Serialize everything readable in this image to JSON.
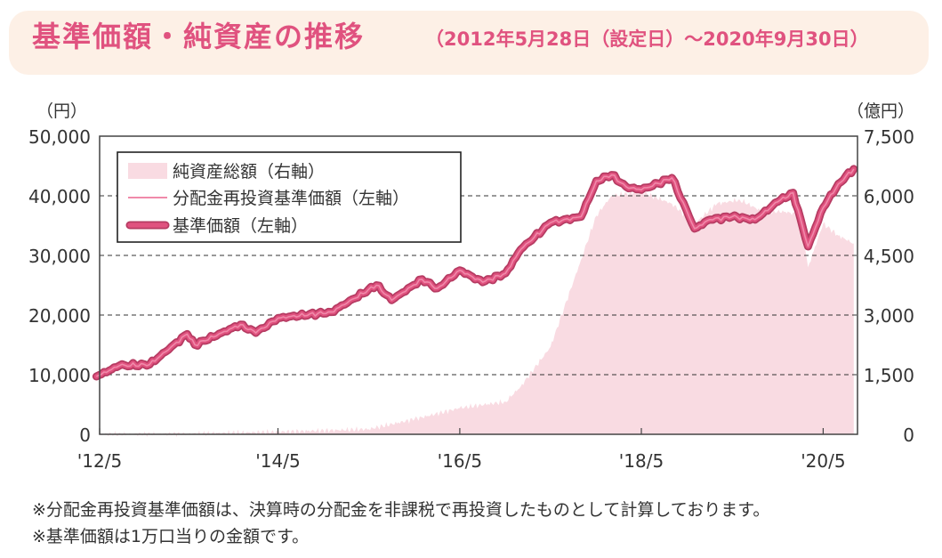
{
  "header": {
    "title": "基準価額・純資産の推移",
    "period": "（2012年5月28日（設定日）〜2020年9月30日）"
  },
  "notes": [
    "※分配金再投資基準価額は、決算時の分配金を非課税で再投資したものとして計算しております。",
    "※基準価額は1万口当りの金額です。"
  ],
  "colors": {
    "accent": "#e0527f",
    "nav_line": "#e0527f",
    "nav_outline": "#b63b62",
    "reinvest_line": "#f08aaa",
    "assets_fill": "#f9dbe2",
    "header_bg": "#fdf0e6"
  },
  "chart_data": {
    "type": "line",
    "left_unit": "（円）",
    "right_unit": "（億円）",
    "x_ticks": [
      "'12/5",
      "'14/5",
      "'16/5",
      "'18/5",
      "'20/5"
    ],
    "x_tick_dates": [
      "2012-05",
      "2014-05",
      "2016-05",
      "2018-05",
      "2020-05"
    ],
    "x_range": [
      "2012-05-28",
      "2020-09-30"
    ],
    "y_left_ticks": [
      "0",
      "10,000",
      "20,000",
      "30,000",
      "40,000",
      "50,000"
    ],
    "y_left_range": [
      0,
      50000
    ],
    "y_right_ticks": [
      "0",
      "1,500",
      "3,000",
      "4,500",
      "6,000",
      "7,500"
    ],
    "y_right_range": [
      0,
      7500
    ],
    "grid": "horizontal dashed",
    "legend_position": "top-left",
    "series": [
      {
        "name": "純資産総額（右軸）",
        "kind": "area",
        "axis": "right",
        "x": [
          "2012-05",
          "2013-05",
          "2014-05",
          "2015-05",
          "2015-11",
          "2016-05",
          "2016-11",
          "2017-01",
          "2017-05",
          "2017-09",
          "2017-11",
          "2018-01",
          "2018-05",
          "2018-09",
          "2018-12",
          "2019-03",
          "2019-06",
          "2019-09",
          "2019-12",
          "2020-02",
          "2020-03",
          "2020-05",
          "2020-07",
          "2020-09"
        ],
        "values": [
          0,
          15,
          60,
          130,
          380,
          660,
          820,
          1200,
          2200,
          4400,
          5500,
          6000,
          6100,
          5800,
          5300,
          5800,
          5900,
          5600,
          5600,
          5500,
          4200,
          5300,
          5000,
          4800
        ]
      },
      {
        "name": "分配金再投資基準価額（左軸）",
        "kind": "line",
        "axis": "left",
        "x": [
          "2012-05",
          "2012-08",
          "2012-12",
          "2013-05",
          "2013-06",
          "2013-12",
          "2014-02",
          "2014-05",
          "2014-12",
          "2015-06",
          "2015-08",
          "2015-12",
          "2016-02",
          "2016-05",
          "2016-08",
          "2016-11",
          "2017-01",
          "2017-05",
          "2017-09",
          "2017-11",
          "2018-01",
          "2018-03",
          "2018-05",
          "2018-09",
          "2018-12",
          "2019-02",
          "2019-05",
          "2019-08",
          "2019-11",
          "2020-01",
          "2020-03",
          "2020-05",
          "2020-07",
          "2020-09"
        ],
        "values": [
          9700,
          11500,
          11700,
          16800,
          15000,
          18400,
          17000,
          19500,
          20500,
          25000,
          22500,
          26000,
          24500,
          27500,
          25500,
          27000,
          31000,
          35500,
          36500,
          42500,
          43500,
          41500,
          41000,
          43000,
          34500,
          36000,
          36500,
          36000,
          39000,
          40500,
          31500,
          38000,
          42000,
          44500
        ]
      },
      {
        "name": "基準価額（左軸）",
        "kind": "line",
        "axis": "left",
        "x": [
          "2012-05",
          "2012-08",
          "2012-12",
          "2013-05",
          "2013-06",
          "2013-12",
          "2014-02",
          "2014-05",
          "2014-12",
          "2015-06",
          "2015-08",
          "2015-12",
          "2016-02",
          "2016-05",
          "2016-08",
          "2016-11",
          "2017-01",
          "2017-05",
          "2017-09",
          "2017-11",
          "2018-01",
          "2018-03",
          "2018-05",
          "2018-09",
          "2018-12",
          "2019-02",
          "2019-05",
          "2019-08",
          "2019-11",
          "2020-01",
          "2020-03",
          "2020-05",
          "2020-07",
          "2020-09"
        ],
        "values": [
          9700,
          11500,
          11700,
          16800,
          15000,
          18400,
          17000,
          19500,
          20500,
          25000,
          22500,
          26000,
          24500,
          27500,
          25500,
          27000,
          31000,
          35500,
          36500,
          42500,
          43500,
          41500,
          41000,
          43000,
          34500,
          36000,
          36500,
          36000,
          39000,
          40500,
          31500,
          38000,
          42000,
          44500
        ]
      }
    ]
  }
}
